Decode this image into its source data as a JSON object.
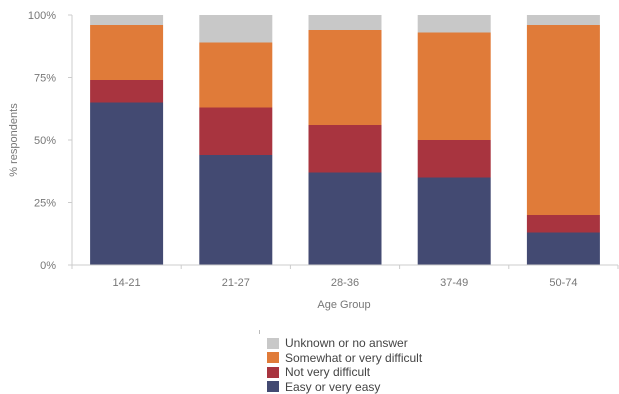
{
  "chart_data": {
    "type": "bar",
    "stacked": true,
    "title": "",
    "xlabel": "Age Group",
    "ylabel": "% respondents",
    "ylim": [
      0,
      100
    ],
    "yticks": [
      "0%",
      "25%",
      "50%",
      "75%",
      "100%"
    ],
    "categories": [
      "14-21",
      "21-27",
      "28-36",
      "37-49",
      "50-74"
    ],
    "series": [
      {
        "name": "Easy or very easy",
        "color": "#434a72",
        "values": [
          65,
          44,
          37,
          35,
          13
        ]
      },
      {
        "name": "Not very difficult",
        "color": "#a8343f",
        "values": [
          9,
          19,
          19,
          15,
          7
        ]
      },
      {
        "name": "Somewhat or very difficult",
        "color": "#e07b39",
        "values": [
          22,
          26,
          38,
          43,
          76
        ]
      },
      {
        "name": "Unknown or no answer",
        "color": "#c8c8c8",
        "values": [
          4,
          11,
          6,
          7,
          4
        ]
      }
    ],
    "legend_placement": "bottom-center",
    "grid": false
  },
  "legend_order": [
    3,
    2,
    1,
    0
  ]
}
